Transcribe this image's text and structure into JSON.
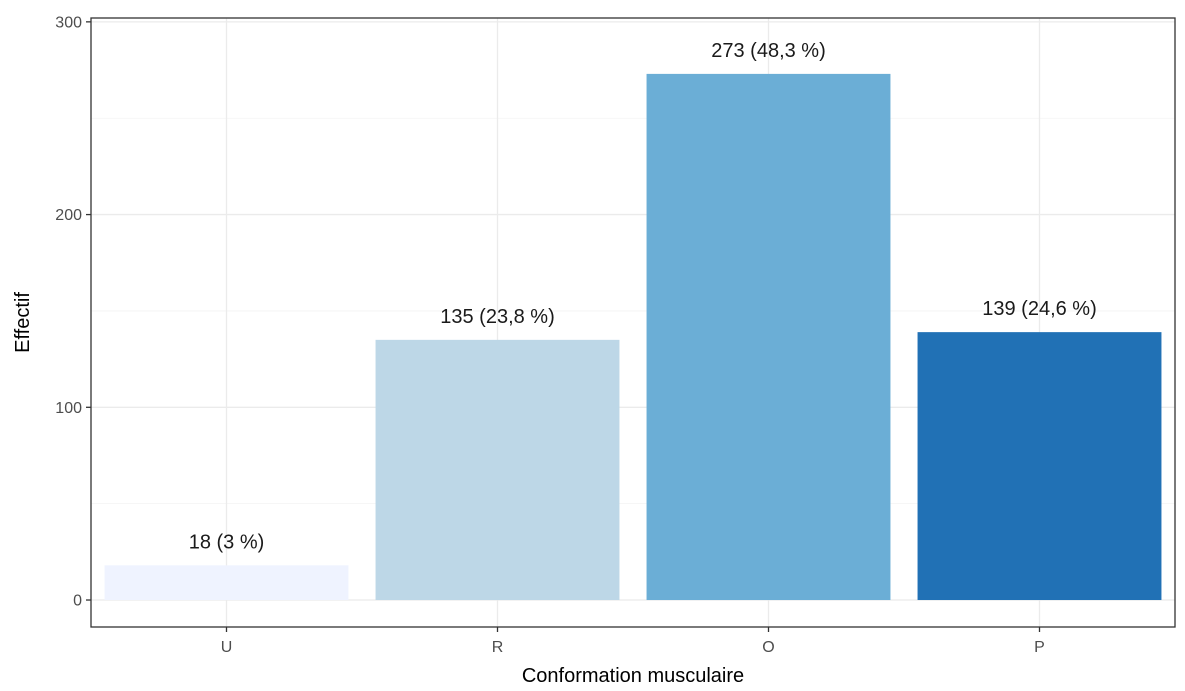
{
  "chart_data": {
    "type": "bar",
    "categories": [
      "U",
      "R",
      "O",
      "P"
    ],
    "values": [
      18,
      135,
      273,
      139
    ],
    "labels": [
      "18 (3 %)",
      "135 (23,8 %)",
      "273 (48,3 %)",
      "139 (24,6 %)"
    ],
    "colors": [
      "#eff3ff",
      "#bdd7e7",
      "#6baed6",
      "#2171b5"
    ],
    "xlabel": "Conformation musculaire",
    "ylabel": "Effectif",
    "ylim": [
      -14,
      302
    ],
    "yticks": [
      0,
      100,
      200,
      300
    ],
    "grid": true,
    "legend": "none"
  }
}
